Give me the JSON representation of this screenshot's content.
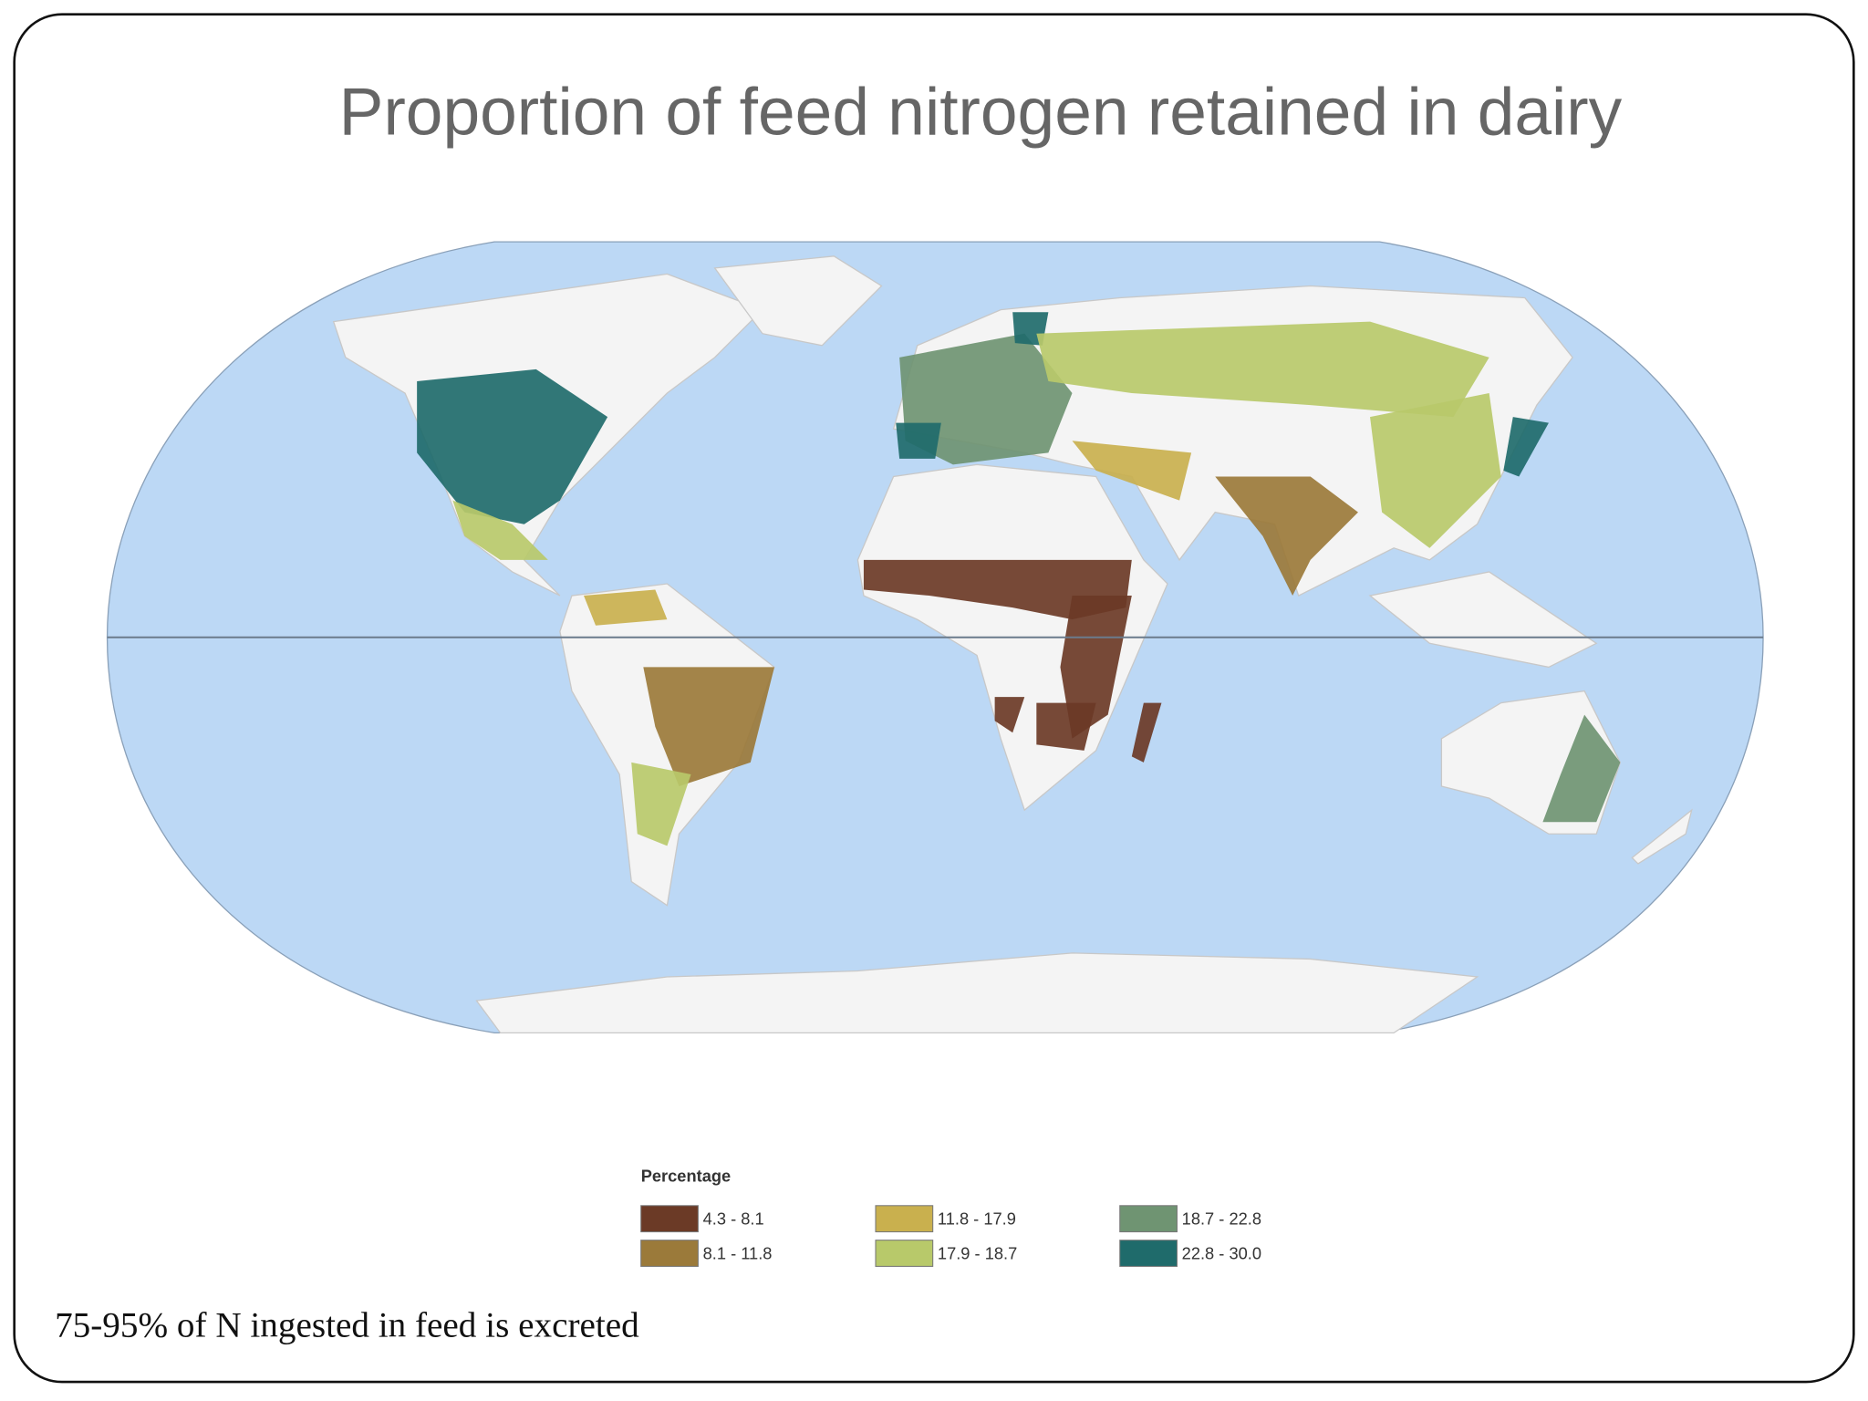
{
  "slide": {
    "title": "Proportion of feed nitrogen retained in dairy",
    "footnote": "75-95% of N ingested in feed is excreted",
    "map": {
      "legend": {
        "title": "Percentage",
        "items": [
          {
            "label": "4.3 - 8.1",
            "color": "#6b3a26"
          },
          {
            "label": "8.1 - 11.8",
            "color": "#9b7a3a"
          },
          {
            "label": "11.8 - 17.9",
            "color": "#c9b04e"
          },
          {
            "label": "17.9 - 18.7",
            "color": "#b8c96a"
          },
          {
            "label": "18.7 - 22.8",
            "color": "#6f9472"
          },
          {
            "label": "22.8 - 30.0",
            "color": "#1f6b6b"
          }
        ]
      }
    }
  }
}
